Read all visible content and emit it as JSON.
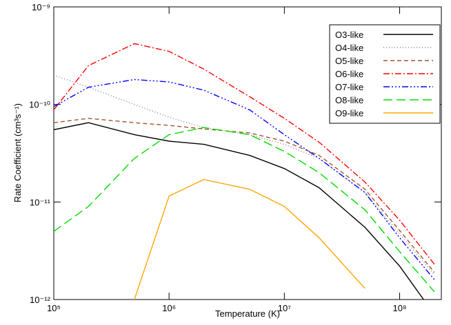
{
  "chart_data": {
    "type": "line",
    "xlabel": "Temperature (K)",
    "ylabel": "Rate Coefficient (cm³s⁻¹)",
    "x": [
      100000,
      200000,
      500000,
      1000000,
      2000000,
      5000000,
      10000000,
      20000000,
      50000000,
      100000000,
      200000000
    ],
    "log_x": true,
    "log_y": true,
    "xlim": [
      100000,
      230000000
    ],
    "ylim": [
      1e-12,
      1e-09
    ],
    "xticks": [
      {
        "value": 100000,
        "label": "10⁵"
      },
      {
        "value": 1000000,
        "label": "10⁶"
      },
      {
        "value": 10000000,
        "label": "10⁷"
      },
      {
        "value": 100000000,
        "label": "10⁸"
      }
    ],
    "yticks": [
      {
        "value": 1e-12,
        "label": "10⁻¹²"
      },
      {
        "value": 1e-11,
        "label": "10⁻¹¹"
      },
      {
        "value": 1e-10,
        "label": "10⁻¹⁰"
      },
      {
        "value": 1e-09,
        "label": "10⁻⁹"
      }
    ],
    "legend": "top-right",
    "series": [
      {
        "name": "O3-like",
        "color": "#000000",
        "dash": "solid",
        "values": [
          5.5e-11,
          6.5e-11,
          4.9e-11,
          4.2e-11,
          3.9e-11,
          3e-11,
          2.2e-11,
          1.4e-11,
          5.5e-12,
          2.2e-12,
          7e-13
        ]
      },
      {
        "name": "O4-like",
        "color": "#808080",
        "dash": "dotted",
        "values": [
          2e-10,
          1.5e-10,
          1e-10,
          7.4e-11,
          5.8e-11,
          4.9e-11,
          3.9e-11,
          2.8e-11,
          1.25e-11,
          4.7e-12,
          1.8e-12
        ]
      },
      {
        "name": "O5-like",
        "color": "#a0522d",
        "dash": "dashed",
        "values": [
          6.5e-11,
          7.2e-11,
          6.5e-11,
          6.1e-11,
          5.6e-11,
          5.1e-11,
          4.2e-11,
          3e-11,
          1.35e-11,
          5.1e-12,
          1.9e-12
        ]
      },
      {
        "name": "O6-like",
        "color": "#ff0000",
        "dash": "dashdot",
        "values": [
          8.8e-11,
          2.5e-10,
          4.2e-10,
          3.5e-10,
          2.3e-10,
          1.2e-10,
          7.2e-11,
          4.1e-11,
          1.6e-11,
          6.5e-12,
          2.3e-12
        ]
      },
      {
        "name": "O7-like",
        "color": "#0000ff",
        "dash": "dashdotdotdot",
        "values": [
          9.5e-11,
          1.5e-10,
          1.8e-10,
          1.7e-10,
          1.4e-10,
          8.8e-11,
          4.9e-11,
          2.8e-11,
          1.25e-11,
          4.3e-12,
          1.6e-12
        ]
      },
      {
        "name": "O8-like",
        "color": "#00dd00",
        "dash": "longdash",
        "values": [
          5e-12,
          9e-12,
          2.8e-11,
          4.9e-11,
          5.8e-11,
          4.9e-11,
          3.3e-11,
          2e-11,
          8.3e-12,
          3.1e-12,
          1.2e-12
        ]
      },
      {
        "name": "O9-like",
        "color": "#ffa500",
        "dash": "solid",
        "values": [
          null,
          null,
          1e-12,
          1.15e-11,
          1.7e-11,
          1.35e-11,
          9e-12,
          4.3e-12,
          1.3e-12,
          null,
          null
        ]
      }
    ]
  }
}
